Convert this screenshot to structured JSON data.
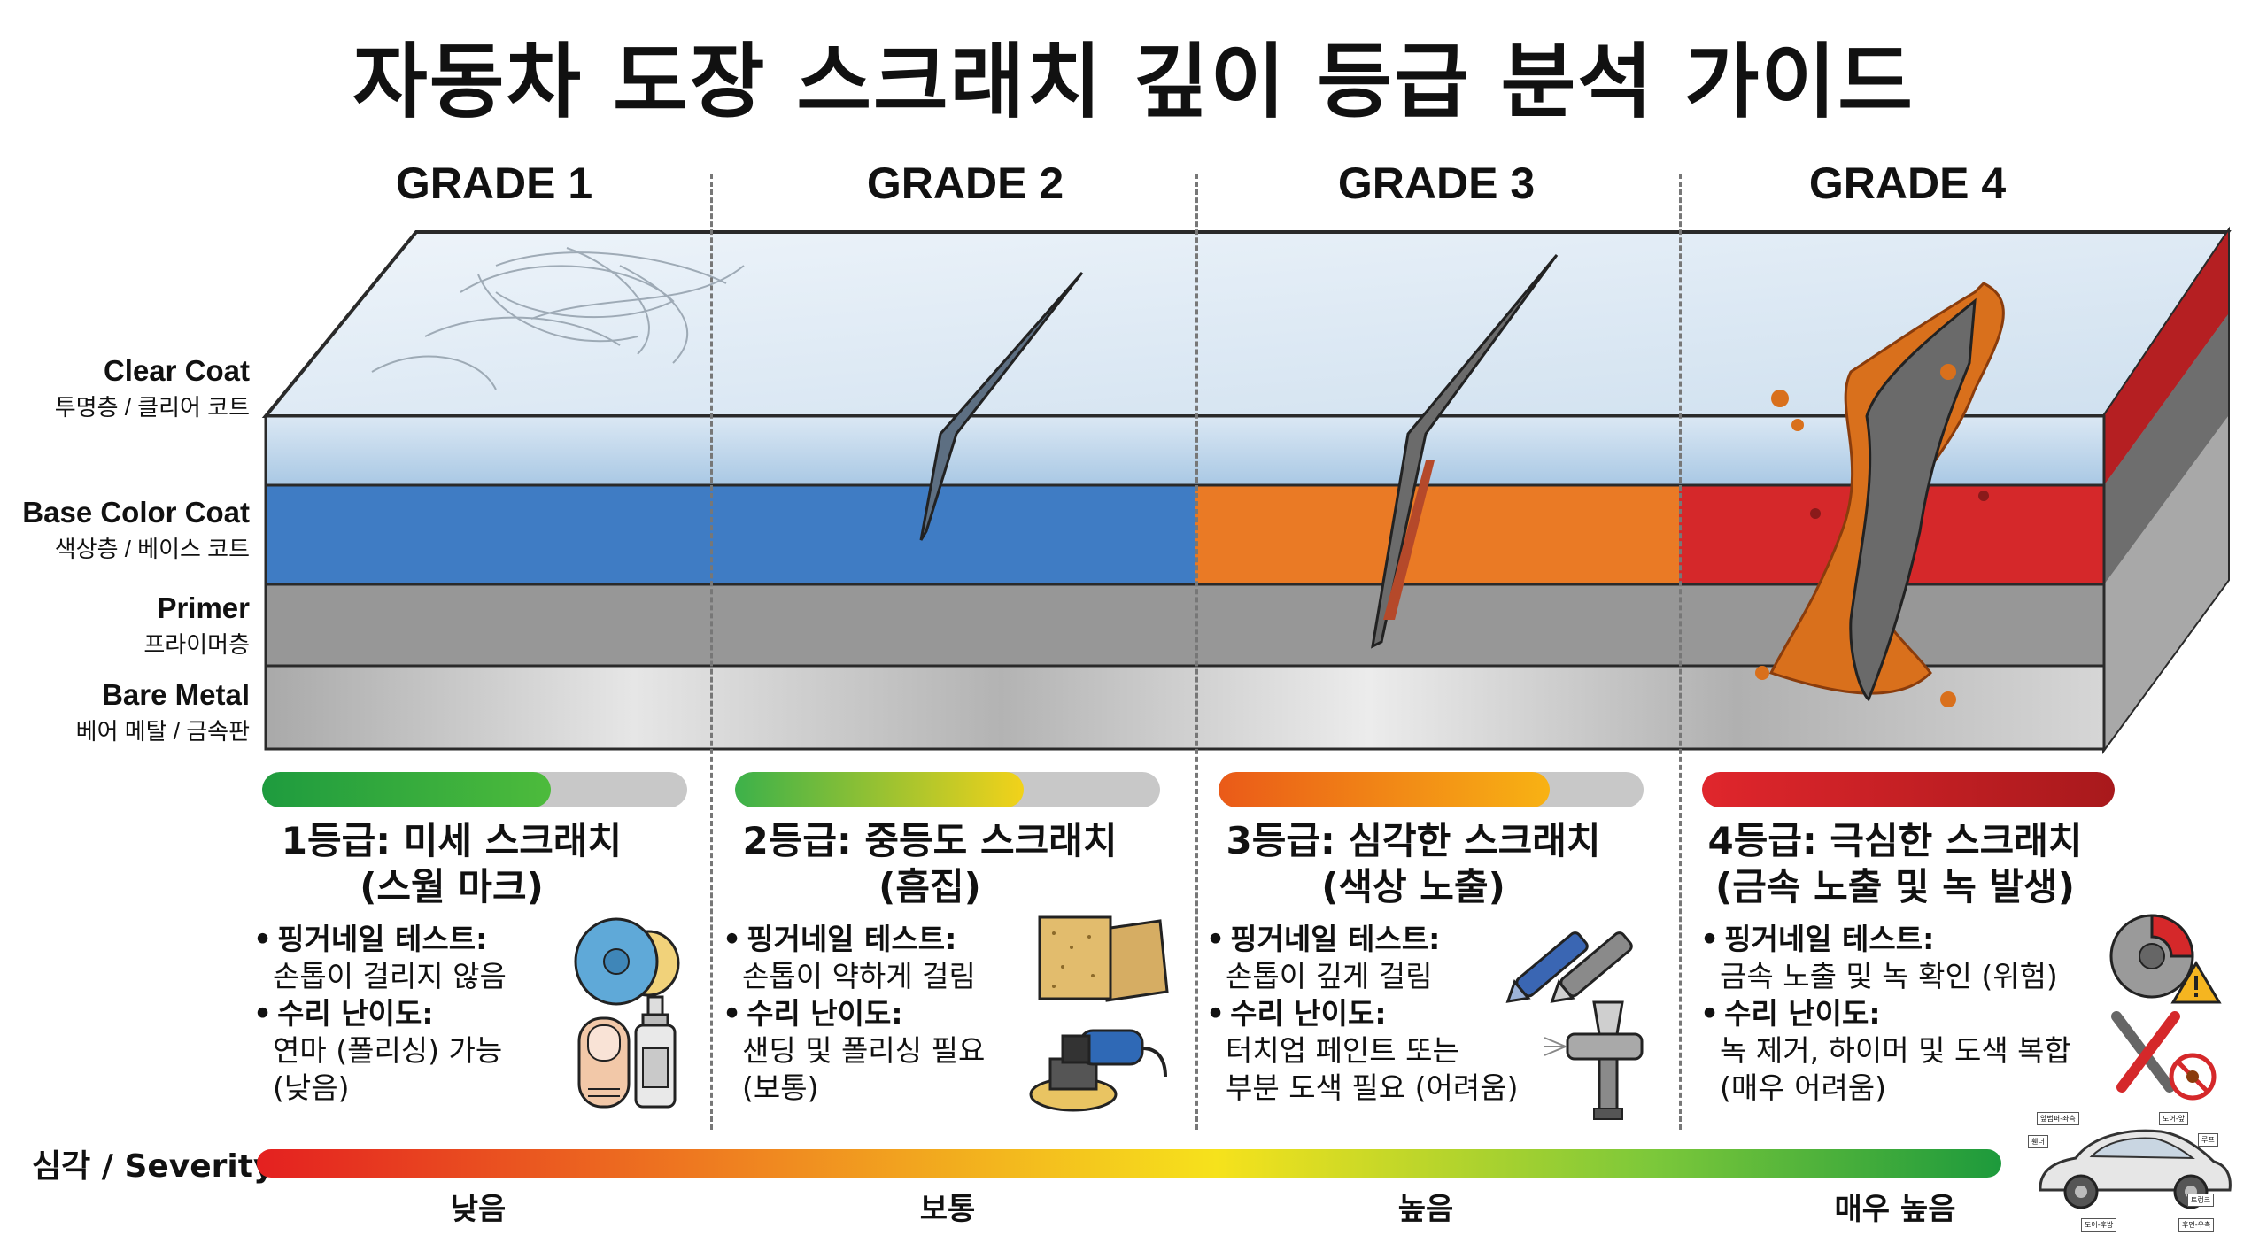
{
  "title": "자동차 도장 스크래치 깊이 등급 분석 가이드",
  "grade_headers": [
    "GRADE 1",
    "GRADE 2",
    "GRADE 3",
    "GRADE 4"
  ],
  "layers": [
    {
      "en": "Clear Coat",
      "ko": "투명층 / 클리어 코트"
    },
    {
      "en": "Base Color Coat",
      "ko": "색상층 / 베이스 코트"
    },
    {
      "en": "Primer",
      "ko": "프라이머층"
    },
    {
      "en": "Bare Metal",
      "ko": "베어 메탈 / 금속판"
    }
  ],
  "colors": {
    "clear_coat": "#bcd6ec",
    "base_blue": "#3f7cc4",
    "base_orange": "#ea7a25",
    "base_red": "#d5282a",
    "primer": "#979797",
    "metal": "#c9c9c9",
    "rust": "#d9701c"
  },
  "grades": [
    {
      "title": "1등급: 미세 스크래치",
      "subtitle": "(스월 마크)",
      "bar_level": 0.68,
      "bar_colors": [
        "#1e9b3e",
        "#4dbb3c"
      ],
      "test_label": "핑거네일 테스트:",
      "test_value": "손톱이 걸리지 않음",
      "repair_label": "수리 난이도:",
      "repair_value_1": "연마 (폴리싱) 가능",
      "repair_value_2": "(낮음)",
      "icons": [
        "polishing-pad-icon",
        "fingernail-icon",
        "polish-bottle-icon"
      ]
    },
    {
      "title": "2등급: 중등도 스크래치",
      "subtitle": "(흠집)",
      "bar_level": 0.68,
      "bar_colors": [
        "#3cb14a",
        "#f2d21a"
      ],
      "test_label": "핑거네일 테스트:",
      "test_value": "손톱이 약하게 걸림",
      "repair_label": "수리 난이도:",
      "repair_value_1": "샌딩 및 폴리싱 필요",
      "repair_value_2": "(보통)",
      "icons": [
        "sandpaper-icon",
        "polisher-machine-icon"
      ]
    },
    {
      "title": "3등급: 심각한 스크래치",
      "subtitle": "(색상 노출)",
      "bar_level": 0.78,
      "bar_colors": [
        "#ea5a18",
        "#f8b214"
      ],
      "test_label": "핑거네일 테스트:",
      "test_value": "손톱이 깊게 걸림",
      "repair_label": "수리 난이도:",
      "repair_value_1": "터치업 페인트 또는",
      "repair_value_2": "부분 도색 필요 (어려움)",
      "icons": [
        "touch-up-pen-icon",
        "spray-gun-icon"
      ]
    },
    {
      "title": "4등급: 극심한 스크래치",
      "subtitle": "(금속 노출 및 녹 발생)",
      "bar_level": 1.0,
      "bar_colors": [
        "#e0262c",
        "#a8191c"
      ],
      "test_label": "핑거네일 테스트:",
      "test_value": "금속 노출 및 녹 확인 (위험)",
      "repair_label": "수리 난이도:",
      "repair_value_1": "녹 제거, 하이머 및 도색 복합",
      "repair_value_2": "(매우 어려움)",
      "icons": [
        "brake-disc-warning-icon",
        "wrench-screwdriver-icon",
        "no-rust-icon"
      ]
    }
  ],
  "severity": {
    "label": "심각 / Severity",
    "levels": [
      "낮음",
      "보통",
      "높음",
      "매우 높음"
    ]
  },
  "car_tags": [
    "앞범퍼-좌측",
    "도어-앞",
    "후면-우측",
    "도어-후방",
    "루프",
    "휀더",
    "트렁크"
  ]
}
